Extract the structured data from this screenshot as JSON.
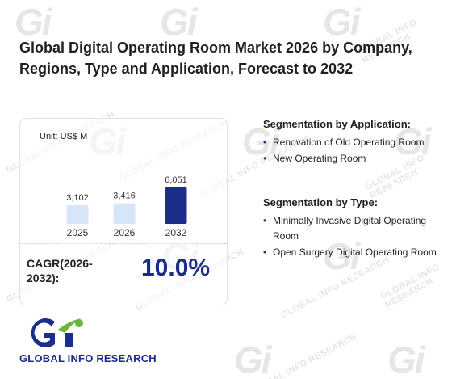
{
  "title": "Global Digital Operating Room Market 2026 by Company, Regions, Type and Application, Forecast to 2032",
  "chart": {
    "unit_label": "Unit: US$ M",
    "colors": {
      "light": "#d6e6f8",
      "dark": "#1a2d8a"
    }
  },
  "chart_data": {
    "type": "bar",
    "categories": [
      "2025",
      "2026",
      "2032"
    ],
    "values": [
      3102,
      3416,
      6051
    ],
    "data_labels": [
      "3,102",
      "3,416",
      "6,051"
    ]
  },
  "cagr": {
    "label": "CAGR(2026-2032):",
    "value": "10.0%"
  },
  "segmentation_application": {
    "title": "Segmentation by Application:",
    "items": [
      "Renovation of Old Operating Room",
      "New Operating Room"
    ]
  },
  "segmentation_type": {
    "title": "Segmentation by Type:",
    "items": [
      "Minimally Invasive Digital Operating Room",
      "Open Surgery Digital Operating Room"
    ]
  },
  "brand": {
    "name": "GLOBAL INFO RESEARCH",
    "logo_colors": {
      "blue": "#1a2d8a",
      "green": "#6cb33f"
    }
  },
  "watermark": {
    "text": "GLOBAL INFO RESEARCH"
  }
}
